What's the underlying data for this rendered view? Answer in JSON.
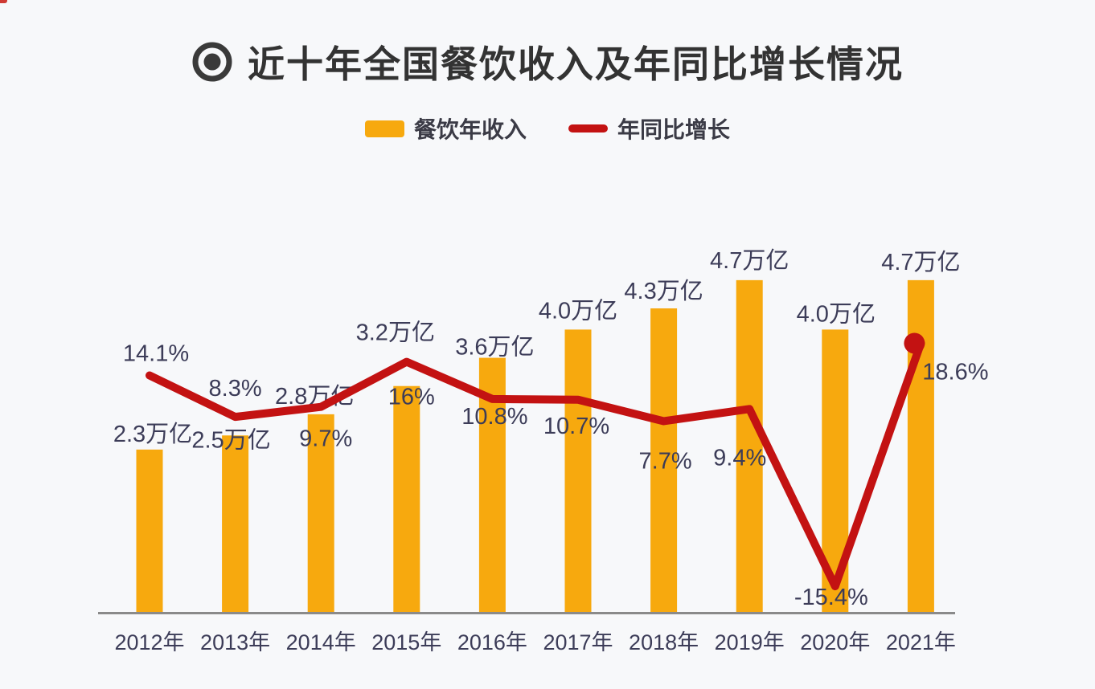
{
  "title": "近十年全国餐饮收入及年同比增长情况",
  "title_icon": "bullseye-icon",
  "legend": {
    "position": "top",
    "items": [
      {
        "label": "餐饮年收入",
        "swatch": "bar",
        "color": "#F7A90E"
      },
      {
        "label": "年同比增长",
        "swatch": "line",
        "color": "#C31212"
      }
    ]
  },
  "chart_data": {
    "type": "bar",
    "combo": "bar+line",
    "title": "近十年全国餐饮收入及年同比增长情况",
    "categories": [
      "2012年",
      "2013年",
      "2014年",
      "2015年",
      "2016年",
      "2017年",
      "2018年",
      "2019年",
      "2020年",
      "2021年"
    ],
    "series": [
      {
        "name": "餐饮年收入",
        "type": "bar",
        "unit": "万亿",
        "values": [
          2.3,
          2.5,
          2.8,
          3.2,
          3.6,
          4.0,
          4.3,
          4.7,
          4.0,
          4.7
        ],
        "data_labels": [
          "2.3万亿",
          "2.5万亿",
          "2.8万亿",
          "3.2万亿",
          "3.6万亿",
          "4.0万亿",
          "4.3万亿",
          "4.7万亿",
          "4.0万亿",
          "4.7万亿"
        ],
        "color": "#F7A90E"
      },
      {
        "name": "年同比增长",
        "type": "line",
        "unit": "%",
        "values": [
          14.1,
          8.3,
          9.7,
          16,
          10.8,
          10.7,
          7.7,
          9.4,
          -15.4,
          18.6
        ],
        "data_labels": [
          "14.1%",
          "8.3%",
          "9.7%",
          "16%",
          "10.8%",
          "10.7%",
          "7.7%",
          "9.4%",
          "-15.4%",
          "18.6%"
        ],
        "color": "#C31212",
        "marker_on_last_point": true
      }
    ],
    "xlabel": "",
    "ylabel": "",
    "grid": false,
    "legend_position": "top",
    "bar_ylim": [
      0,
      5.5
    ],
    "line_ylim": [
      -19,
      19
    ],
    "axis_line_color": "#8A8A8A",
    "label_color": "#3C3C58",
    "title_color": "#333333",
    "background": "#F7F8FA"
  }
}
